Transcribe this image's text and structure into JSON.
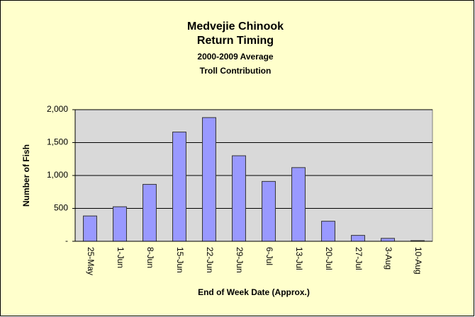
{
  "chart_data": {
    "type": "bar",
    "title": [
      "Medvejie Chinook",
      "Return Timing"
    ],
    "subtitle": [
      "2000-2009 Average",
      "Troll Contribution"
    ],
    "x_label": "End of Week Date (Approx.)",
    "y_label": "Number of Fish",
    "categories": [
      "25-May",
      "1-Jun",
      "8-Jun",
      "15-Jun",
      "22-Jun",
      "29-Jun",
      "6-Jul",
      "13-Jul",
      "20-Jul",
      "27-Jul",
      "3-Aug",
      "10-Aug"
    ],
    "values": [
      385,
      525,
      865,
      1660,
      1880,
      1300,
      910,
      1120,
      305,
      90,
      45,
      10
    ],
    "color": "#9999ff",
    "ylim": [
      0,
      2000
    ],
    "yticks": [
      {
        "value": 0,
        "label": "-"
      },
      500,
      {
        "value": 1000,
        "label": "1,000"
      },
      {
        "value": 1500,
        "label": "1,500"
      },
      {
        "value": 2000,
        "label": "2,000"
      }
    ],
    "grid": true
  }
}
